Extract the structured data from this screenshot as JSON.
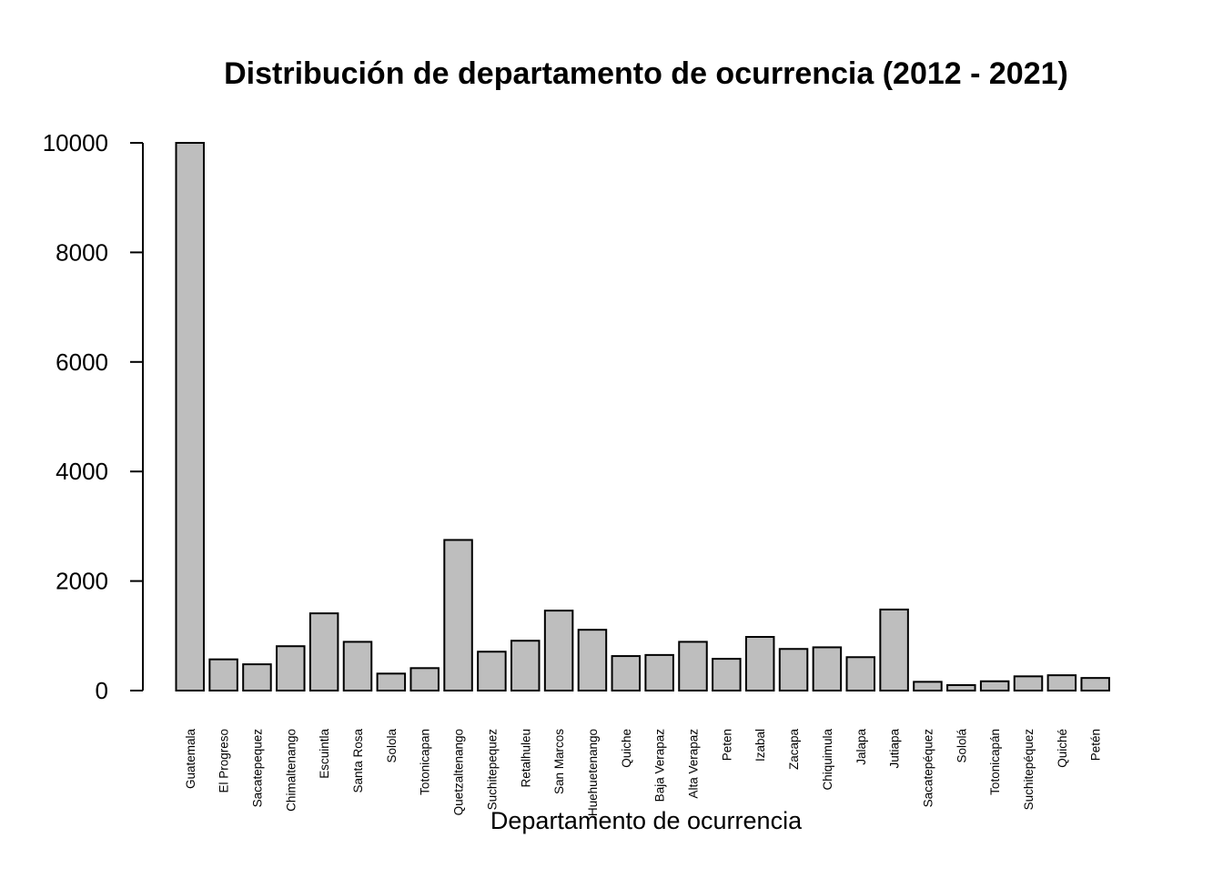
{
  "chart_data": {
    "type": "bar",
    "title": "Distribución de departamento de ocurrencia (2012 - 2021)",
    "xlabel": "Departamento de ocurrencia",
    "ylabel": "",
    "ylim": [
      0,
      10000
    ],
    "yticks": [
      "0",
      "2000",
      "4000",
      "6000",
      "8000",
      "10000"
    ],
    "grid": false,
    "bar_color": "#bebebe",
    "categories": [
      "Guatemala",
      "El Progreso",
      "Sacatepequez",
      "Chimaltenango",
      "Escuintla",
      "Santa Rosa",
      "Solola",
      "Totonicapan",
      "Quetzaltenango",
      "Suchitepequez",
      "Retalhuleu",
      "San Marcos",
      "Huehuetenango",
      "Quiche",
      "Baja Verapaz",
      "Alta Verapaz",
      "Peten",
      "Izabal",
      "Zacapa",
      "Chiquimula",
      "Jalapa",
      "Jutiapa",
      "Sacatepéquez",
      "Sololá",
      "Totonicapán",
      "Suchitepéquez",
      "Quiché",
      "Petén"
    ],
    "values": [
      10000,
      570,
      480,
      810,
      1410,
      890,
      310,
      410,
      2750,
      710,
      910,
      1460,
      1110,
      630,
      650,
      890,
      580,
      980,
      760,
      790,
      610,
      1480,
      160,
      100,
      170,
      260,
      280,
      230
    ]
  }
}
